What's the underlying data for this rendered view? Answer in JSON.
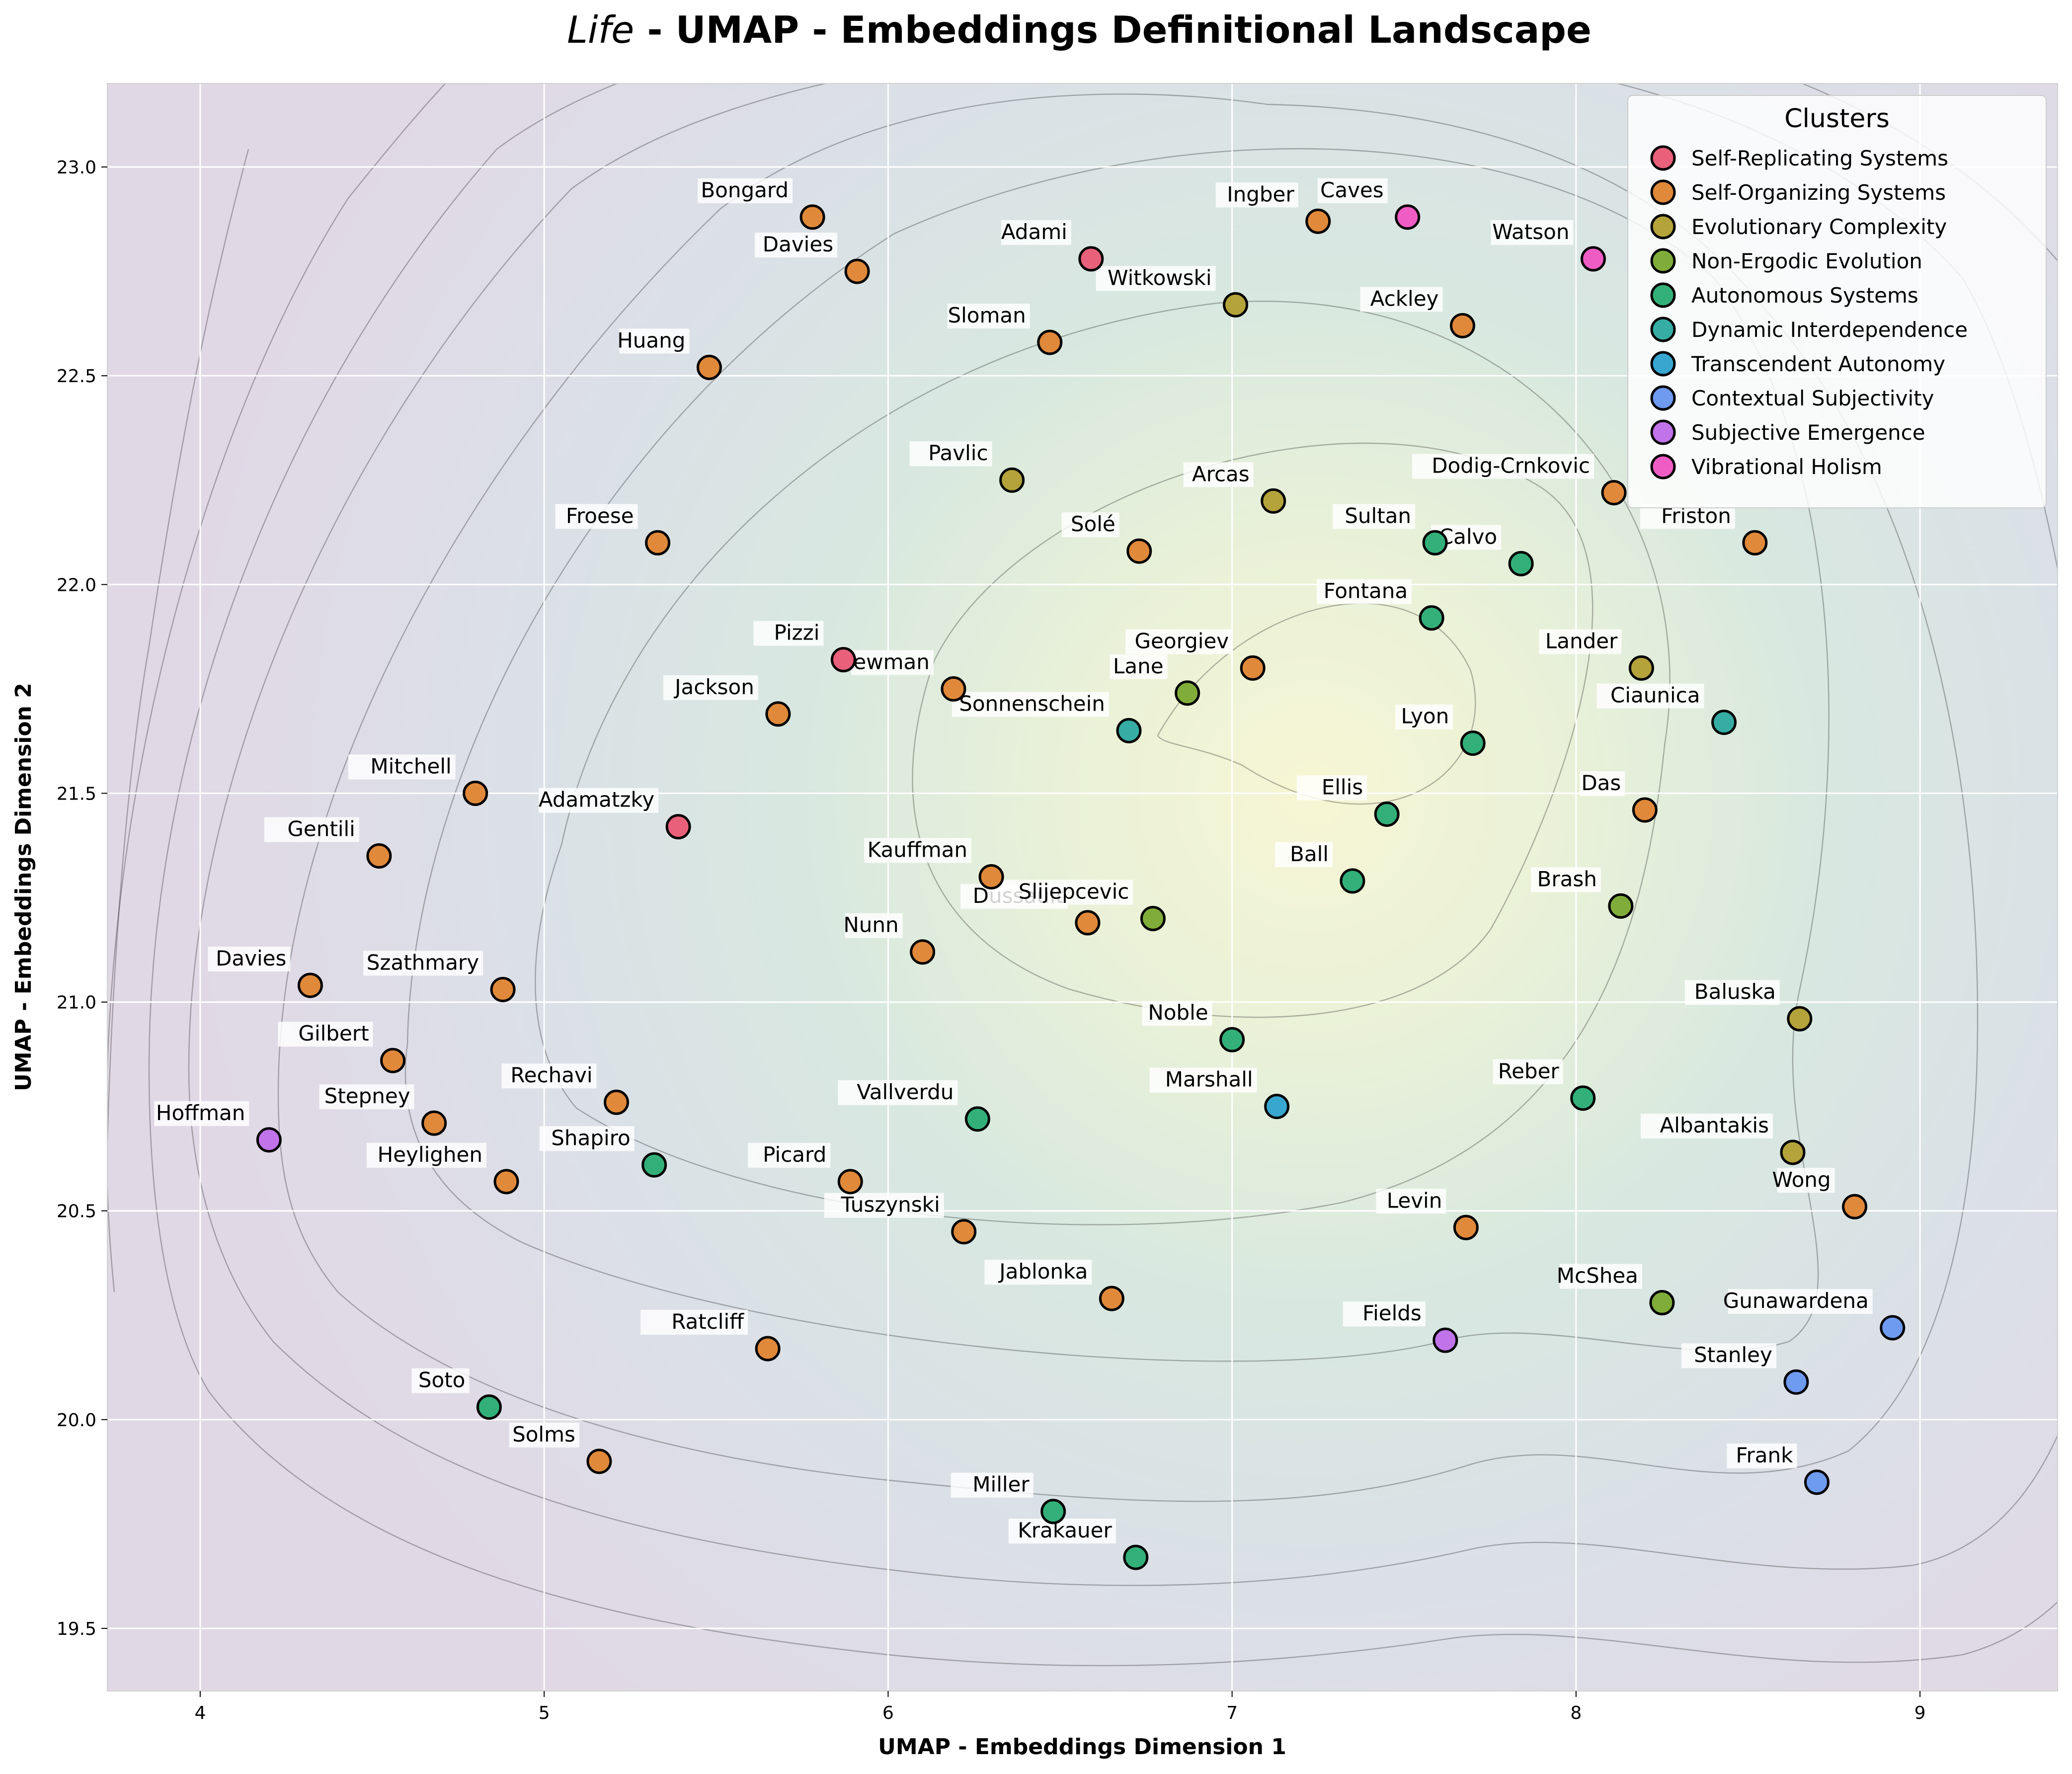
{
  "chart_data": {
    "type": "scatter",
    "title_italic": "Life",
    "title_rest": " - UMAP - Embeddings Definitional Landscape",
    "xlabel": "UMAP - Embeddings Dimension 1",
    "ylabel": "UMAP - Embeddings Dimension 2",
    "xlim": [
      3.73,
      9.4
    ],
    "ylim": [
      19.35,
      23.2
    ],
    "xticks": [
      4,
      5,
      6,
      7,
      8,
      9
    ],
    "yticks": [
      19.5,
      20.0,
      20.5,
      21.0,
      21.5,
      22.0,
      22.5,
      23.0
    ],
    "grid": true,
    "background": "density contour (KDE)",
    "legend": {
      "title": "Clusters",
      "placement": "top-right"
    },
    "series": [
      {
        "name": "Self-Replicating Systems",
        "color": "#e8607a",
        "points": [
          {
            "label": "Adami",
            "x": 6.59,
            "y": 22.78
          },
          {
            "label": "Adamatzky",
            "x": 5.39,
            "y": 21.42
          },
          {
            "label": "Pizzi",
            "x": 5.87,
            "y": 21.82
          }
        ]
      },
      {
        "name": "Self-Organizing Systems",
        "color": "#e0893a",
        "points": [
          {
            "label": "Bongard",
            "x": 5.78,
            "y": 22.88
          },
          {
            "label": "Davies",
            "x": 5.91,
            "y": 22.75
          },
          {
            "label": "Huang",
            "x": 5.48,
            "y": 22.52
          },
          {
            "label": "Sloman",
            "x": 6.47,
            "y": 22.58
          },
          {
            "label": "Ingber",
            "x": 7.25,
            "y": 22.87
          },
          {
            "label": "Ackley",
            "x": 7.67,
            "y": 22.62
          },
          {
            "label": "Dodig-Crnkovic",
            "x": 8.11,
            "y": 22.22
          },
          {
            "label": "Friston",
            "x": 8.52,
            "y": 22.1
          },
          {
            "label": "Froese",
            "x": 5.33,
            "y": 22.1
          },
          {
            "label": "Solé",
            "x": 6.73,
            "y": 22.08
          },
          {
            "label": "Newman",
            "x": 6.19,
            "y": 21.75
          },
          {
            "label": "Jackson",
            "x": 5.68,
            "y": 21.69
          },
          {
            "label": "Georgiev",
            "x": 7.06,
            "y": 21.8
          },
          {
            "label": "Mitchell",
            "x": 4.8,
            "y": 21.5
          },
          {
            "label": "Gentili",
            "x": 4.52,
            "y": 21.35
          },
          {
            "label": "Das",
            "x": 8.2,
            "y": 21.46
          },
          {
            "label": "Kauffman",
            "x": 6.3,
            "y": 21.3
          },
          {
            "label": "Dussault",
            "x": 6.58,
            "y": 21.19
          },
          {
            "label": "Nunn",
            "x": 6.1,
            "y": 21.12
          },
          {
            "label": "Davies",
            "x": 4.32,
            "y": 21.04
          },
          {
            "label": "Szathmary",
            "x": 4.88,
            "y": 21.03
          },
          {
            "label": "Gilbert",
            "x": 4.56,
            "y": 20.86
          },
          {
            "label": "Rechavi",
            "x": 5.21,
            "y": 20.76
          },
          {
            "label": "Stepney",
            "x": 4.68,
            "y": 20.71
          },
          {
            "label": "Heylighen",
            "x": 4.89,
            "y": 20.57
          },
          {
            "label": "Picard",
            "x": 5.89,
            "y": 20.57
          },
          {
            "label": "Tuszynski",
            "x": 6.22,
            "y": 20.45
          },
          {
            "label": "Wong",
            "x": 8.81,
            "y": 20.51
          },
          {
            "label": "Levin",
            "x": 7.68,
            "y": 20.46
          },
          {
            "label": "Jablonka",
            "x": 6.65,
            "y": 20.29
          },
          {
            "label": "Ratcliff",
            "x": 5.65,
            "y": 20.17
          },
          {
            "label": "Solms",
            "x": 5.16,
            "y": 19.9
          }
        ]
      },
      {
        "name": "Evolutionary Complexity",
        "color": "#b4a33a",
        "points": [
          {
            "label": "Witkowski",
            "x": 7.01,
            "y": 22.67
          },
          {
            "label": "Pavlic",
            "x": 6.36,
            "y": 22.25
          },
          {
            "label": "Arcas",
            "x": 7.12,
            "y": 22.2
          },
          {
            "label": "Lander",
            "x": 8.19,
            "y": 21.8
          },
          {
            "label": "Baluska",
            "x": 8.65,
            "y": 20.96
          },
          {
            "label": "Albantakis",
            "x": 8.63,
            "y": 20.64
          }
        ]
      },
      {
        "name": "Non-Ergodic Evolution",
        "color": "#80ad3a",
        "points": [
          {
            "label": "Lane",
            "x": 6.87,
            "y": 21.74
          },
          {
            "label": "Slijepcevic",
            "x": 6.77,
            "y": 21.2
          },
          {
            "label": "Brash",
            "x": 8.13,
            "y": 21.23
          },
          {
            "label": "McShea",
            "x": 8.25,
            "y": 20.28
          }
        ]
      },
      {
        "name": "Autonomous Systems",
        "color": "#33b07a",
        "points": [
          {
            "label": "Sultan",
            "x": 7.59,
            "y": 22.1
          },
          {
            "label": "Calvo",
            "x": 7.84,
            "y": 22.05
          },
          {
            "label": "Fontana",
            "x": 7.58,
            "y": 21.92
          },
          {
            "label": "Lyon",
            "x": 7.7,
            "y": 21.62
          },
          {
            "label": "Ellis",
            "x": 7.45,
            "y": 21.45
          },
          {
            "label": "Ball",
            "x": 7.35,
            "y": 21.29
          },
          {
            "label": "Noble",
            "x": 7.0,
            "y": 20.91
          },
          {
            "label": "Vallverdu",
            "x": 6.26,
            "y": 20.72
          },
          {
            "label": "Reber",
            "x": 8.02,
            "y": 20.77
          },
          {
            "label": "Shapiro",
            "x": 5.32,
            "y": 20.61
          },
          {
            "label": "Soto",
            "x": 4.84,
            "y": 20.03
          },
          {
            "label": "Miller",
            "x": 6.48,
            "y": 19.78
          },
          {
            "label": "Krakauer",
            "x": 6.72,
            "y": 19.67
          }
        ]
      },
      {
        "name": "Dynamic Interdependence",
        "color": "#36ada4",
        "points": [
          {
            "label": "Sonnenschein",
            "x": 6.7,
            "y": 21.65
          },
          {
            "label": "Ciaunica",
            "x": 8.43,
            "y": 21.67
          }
        ]
      },
      {
        "name": "Transcendent Autonomy",
        "color": "#38a7d0",
        "points": [
          {
            "label": "Marshall",
            "x": 7.13,
            "y": 20.75
          }
        ]
      },
      {
        "name": "Contextual Subjectivity",
        "color": "#6e9af0",
        "points": [
          {
            "label": "Gunawardena",
            "x": 8.92,
            "y": 20.22
          },
          {
            "label": "Stanley",
            "x": 8.64,
            "y": 20.09
          },
          {
            "label": "Frank",
            "x": 8.7,
            "y": 19.85
          }
        ]
      },
      {
        "name": "Subjective Emergence",
        "color": "#c173ea",
        "points": [
          {
            "label": "Hoffman",
            "x": 4.2,
            "y": 20.67
          },
          {
            "label": "Fields",
            "x": 7.62,
            "y": 20.19
          }
        ]
      },
      {
        "name": "Vibrational Holism",
        "color": "#ef5cc4",
        "points": [
          {
            "label": "Caves",
            "x": 7.51,
            "y": 22.88
          },
          {
            "label": "Watson",
            "x": 8.05,
            "y": 22.78
          }
        ]
      }
    ]
  }
}
